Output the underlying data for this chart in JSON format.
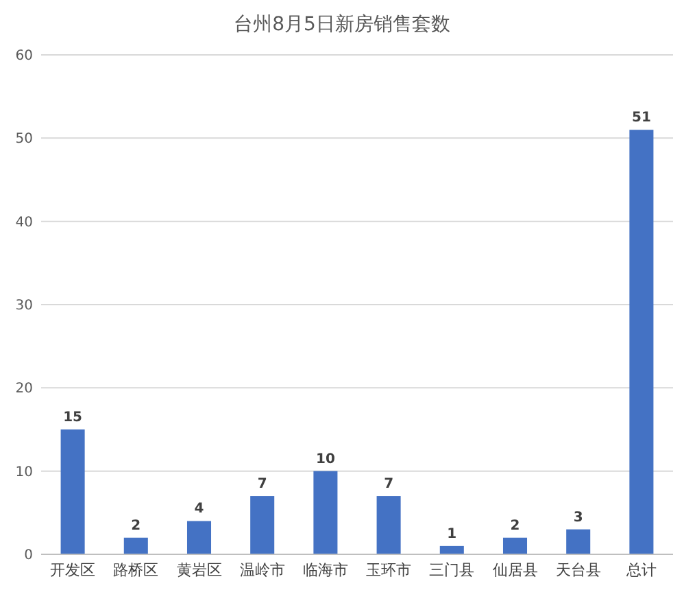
{
  "chart_data": {
    "type": "bar",
    "title": "台州8月5日新房销售套数",
    "categories": [
      "开发区",
      "路桥区",
      "黄岩区",
      "温岭市",
      "临海市",
      "玉环市",
      "三门县",
      "仙居县",
      "天台县",
      "总计"
    ],
    "values": [
      15,
      2,
      4,
      7,
      10,
      7,
      1,
      2,
      3,
      51
    ],
    "color": "#4472c4",
    "ylim": [
      0,
      60
    ],
    "yticks": [
      0,
      10,
      20,
      30,
      40,
      50,
      60
    ],
    "grid": "y",
    "data_labels": true
  }
}
